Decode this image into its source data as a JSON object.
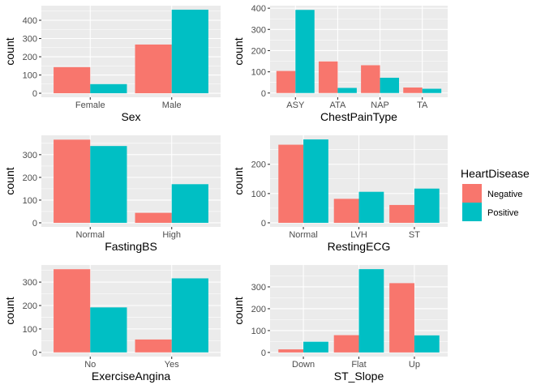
{
  "legend": {
    "title": "HeartDisease",
    "entries": [
      {
        "label": "Negative",
        "color": "#F8766D"
      },
      {
        "label": "Positive",
        "color": "#00BFC4"
      }
    ]
  },
  "chart_data": [
    {
      "type": "bar",
      "xlabel": "Sex",
      "ylabel": "count",
      "categories": [
        "Female",
        "Male"
      ],
      "series": [
        {
          "name": "Negative",
          "values": [
            143,
            267
          ]
        },
        {
          "name": "Positive",
          "values": [
            50,
            458
          ]
        }
      ],
      "ylim": [
        -22,
        480
      ],
      "yticks": [
        0,
        100,
        200,
        300,
        400
      ]
    },
    {
      "type": "bar",
      "xlabel": "ChestPainType",
      "ylabel": "count",
      "categories": [
        "ASY",
        "ATA",
        "NAP",
        "TA"
      ],
      "series": [
        {
          "name": "Negative",
          "values": [
            104,
            149,
            131,
            26
          ]
        },
        {
          "name": "Positive",
          "values": [
            392,
            24,
            72,
            20
          ]
        }
      ],
      "ylim": [
        -20,
        412
      ],
      "yticks": [
        0,
        100,
        200,
        300,
        400
      ]
    },
    {
      "type": "bar",
      "xlabel": "FastingBS",
      "ylabel": "count",
      "categories": [
        "Normal",
        "High"
      ],
      "series": [
        {
          "name": "Negative",
          "values": [
            366,
            44
          ]
        },
        {
          "name": "Positive",
          "values": [
            338,
            170
          ]
        }
      ],
      "ylim": [
        -18,
        385
      ],
      "yticks": [
        0,
        100,
        200,
        300
      ]
    },
    {
      "type": "bar",
      "xlabel": "RestingECG",
      "ylabel": "count",
      "categories": [
        "Normal",
        "LVH",
        "ST"
      ],
      "series": [
        {
          "name": "Negative",
          "values": [
            267,
            82,
            61
          ]
        },
        {
          "name": "Positive",
          "values": [
            285,
            106,
            117
          ]
        }
      ],
      "ylim": [
        -14,
        299
      ],
      "yticks": [
        0,
        100,
        200
      ]
    },
    {
      "type": "bar",
      "xlabel": "ExerciseAngina",
      "ylabel": "count",
      "categories": [
        "No",
        "Yes"
      ],
      "series": [
        {
          "name": "Negative",
          "values": [
            355,
            55
          ]
        },
        {
          "name": "Positive",
          "values": [
            192,
            316
          ]
        }
      ],
      "ylim": [
        -18,
        373
      ],
      "yticks": [
        0,
        100,
        200,
        300
      ]
    },
    {
      "type": "bar",
      "xlabel": "ST_Slope",
      "ylabel": "count",
      "categories": [
        "Down",
        "Flat",
        "Up"
      ],
      "series": [
        {
          "name": "Negative",
          "values": [
            14,
            79,
            317
          ]
        },
        {
          "name": "Positive",
          "values": [
            49,
            381,
            78
          ]
        }
      ],
      "ylim": [
        -19,
        400
      ],
      "yticks": [
        0,
        100,
        200,
        300
      ]
    }
  ]
}
